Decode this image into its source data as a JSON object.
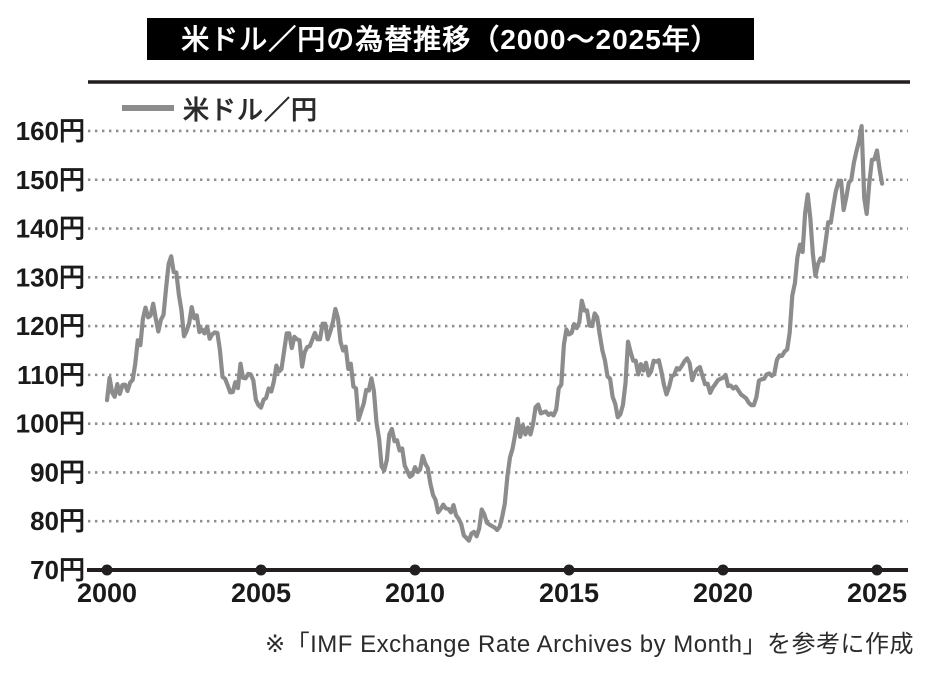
{
  "title": "米ドル／円の為替推移（2000～2025年）",
  "legend": {
    "label": "米ドル／円"
  },
  "footer": {
    "text": "※「IMF Exchange Rate Archives by Month」を参考に作成"
  },
  "colors": {
    "line": "#8c8c8c",
    "grid": "#8f8f8f",
    "axis": "#231f20",
    "text": "#1a1a1a",
    "title_bg": "#000000",
    "title_fg": "#ffffff"
  },
  "chart_data": {
    "type": "line",
    "title": "米ドル／円の為替推移（2000～2025年）",
    "xlabel": "",
    "ylabel": "円",
    "xlim": [
      2000,
      2025.3
    ],
    "ylim": [
      70,
      165
    ],
    "grid": "horizontal-dotted",
    "legend_position": "top-left",
    "x_ticks": [
      2000,
      2005,
      2010,
      2015,
      2020,
      2025
    ],
    "x_tick_labels": [
      "2000",
      "2005",
      "2010",
      "2015",
      "2020",
      "2025"
    ],
    "y_ticks": [
      70,
      80,
      90,
      100,
      110,
      120,
      130,
      140,
      150,
      160
    ],
    "y_tick_labels": [
      "70円",
      "80円",
      "90円",
      "100円",
      "110円",
      "120円",
      "130円",
      "140円",
      "150円",
      "160円"
    ],
    "source_note": "※「IMF Exchange Rate Archives by Month」を参考に作成",
    "series": [
      {
        "name": "米ドル／円",
        "unit": "JPY per USD",
        "x_start_year": 2000,
        "x_step_months": 1,
        "values": [
          104.8,
          109.4,
          106.4,
          105.5,
          108.1,
          106.1,
          107.9,
          108.0,
          106.7,
          108.4,
          109.0,
          112.2,
          117.1,
          116.1,
          121.5,
          123.8,
          121.8,
          122.2,
          124.6,
          121.5,
          118.9,
          121.3,
          122.3,
          127.6,
          132.7,
          134.3,
          131.1,
          131.0,
          126.4,
          123.3,
          117.9,
          119.0,
          120.5,
          123.9,
          121.6,
          122.2,
          118.8,
          119.3,
          118.5,
          119.9,
          117.4,
          118.3,
          118.7,
          118.6,
          115.1,
          109.6,
          109.2,
          107.9,
          106.4,
          106.5,
          108.5,
          107.3,
          112.3,
          109.4,
          109.3,
          110.2,
          110.1,
          108.9,
          104.9,
          103.8,
          103.3,
          104.9,
          105.3,
          107.2,
          106.6,
          108.6,
          111.9,
          110.7,
          111.2,
          114.9,
          118.5,
          118.5,
          115.5,
          117.8,
          117.3,
          117.1,
          111.7,
          114.6,
          115.7,
          115.9,
          117.2,
          118.6,
          117.3,
          117.3,
          120.5,
          120.5,
          117.3,
          118.9,
          120.8,
          123.5,
          121.6,
          116.7,
          115.0,
          115.8,
          111.2,
          112.3,
          107.6,
          107.2,
          100.8,
          102.5,
          104.1,
          106.9,
          106.8,
          109.3,
          106.7,
          100.2,
          96.9,
          91.2,
          90.4,
          92.5,
          97.8,
          98.9,
          96.4,
          96.6,
          94.5,
          94.9,
          91.4,
          90.3,
          89.1,
          89.5,
          91.1,
          90.1,
          90.6,
          93.4,
          91.8,
          90.9,
          87.7,
          85.4,
          84.4,
          81.8,
          82.5,
          83.4,
          82.6,
          82.5,
          81.8,
          83.3,
          81.2,
          80.5,
          79.4,
          77.1,
          76.6,
          76.0,
          77.5,
          77.8,
          76.9,
          78.5,
          82.4,
          81.4,
          79.7,
          79.3,
          79.0,
          78.7,
          78.2,
          78.9,
          81.0,
          83.6,
          89.2,
          93.1,
          94.8,
          97.7,
          101.0,
          97.3,
          99.7,
          97.8,
          99.2,
          97.8,
          100.0,
          103.4,
          103.9,
          102.1,
          102.3,
          102.5,
          101.8,
          102.1,
          101.7,
          102.9,
          107.2,
          108.0,
          116.2,
          119.3,
          118.3,
          118.6,
          120.4,
          119.6,
          120.8,
          125.2,
          123.2,
          123.2,
          120.1,
          120.0,
          122.6,
          121.8,
          118.2,
          115.0,
          113.0,
          109.7,
          109.2,
          105.5,
          104.1,
          101.3,
          101.9,
          103.8,
          108.3,
          116.8,
          114.7,
          112.9,
          112.9,
          110.1,
          112.2,
          110.9,
          112.5,
          109.9,
          110.7,
          112.9,
          112.7,
          113.0,
          110.7,
          107.9,
          106.0,
          107.5,
          109.7,
          110.0,
          111.4,
          111.1,
          111.9,
          112.8,
          113.4,
          112.4,
          108.9,
          110.4,
          111.2,
          111.6,
          109.8,
          108.1,
          108.2,
          106.3,
          107.4,
          108.1,
          108.9,
          109.2,
          109.4,
          110.0,
          107.7,
          107.8,
          107.2,
          107.6,
          106.8,
          106.0,
          105.6,
          105.2,
          104.3,
          103.8,
          103.8,
          105.4,
          108.8,
          109.1,
          109.2,
          110.1,
          110.3,
          109.8,
          110.2,
          113.1,
          114.0,
          113.9,
          114.8,
          115.2,
          118.7,
          126.3,
          128.8,
          134.1,
          136.7,
          135.2,
          143.1,
          147.0,
          142.2,
          134.9,
          130.3,
          132.7,
          133.9,
          133.4,
          137.4,
          141.3,
          141.2,
          144.7,
          147.7,
          149.6,
          149.8,
          143.8,
          146.3,
          149.4,
          150.0,
          153.5,
          155.9,
          157.9,
          161.0,
          146.3,
          143.0,
          149.3,
          154.1,
          154.2,
          156.0,
          152.1,
          149.2
        ]
      }
    ]
  }
}
